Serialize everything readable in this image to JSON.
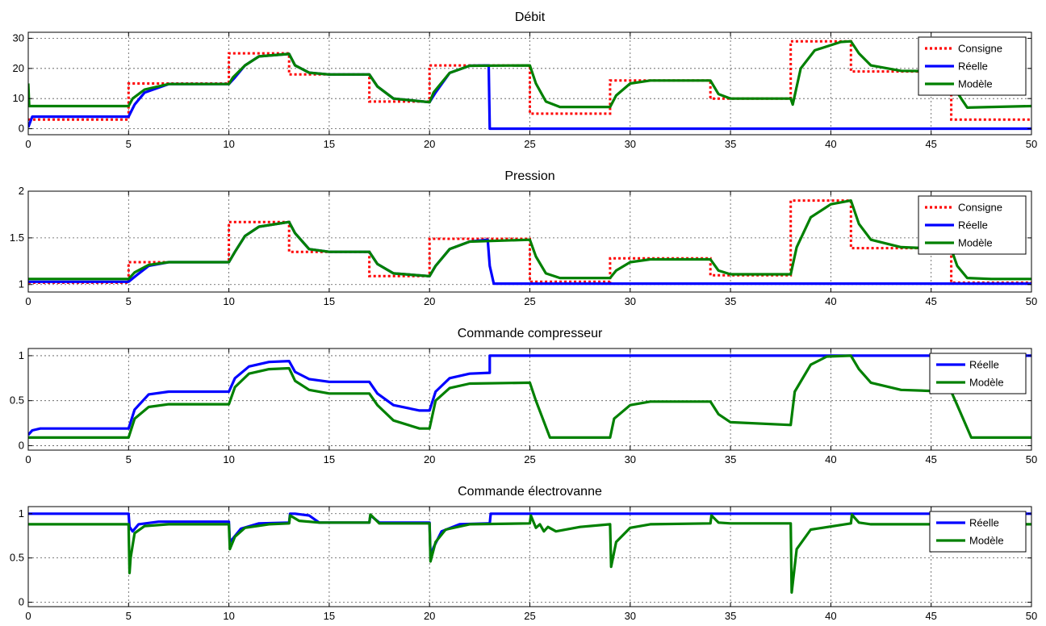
{
  "chart_data": [
    {
      "type": "line",
      "title": "Débit",
      "xlim": [
        0,
        50
      ],
      "ylim": [
        -2,
        32
      ],
      "xticks": [
        0,
        5,
        10,
        15,
        20,
        25,
        30,
        35,
        40,
        45,
        50
      ],
      "yticks": [
        0,
        10,
        20,
        30
      ],
      "grid": true,
      "legend_position": "top-right",
      "series": [
        {
          "name": "Consigne",
          "style": "dotted",
          "color": "#ff0000",
          "x": [
            0,
            5,
            5,
            10,
            10,
            13,
            13,
            17,
            17,
            20,
            20,
            23,
            23,
            25,
            25,
            29,
            29,
            34,
            34,
            38,
            38,
            41,
            41,
            46,
            46,
            50
          ],
          "y": [
            3,
            3,
            15,
            15,
            25,
            25,
            18,
            18,
            9,
            9,
            21,
            21,
            21,
            21,
            5,
            5,
            16,
            16,
            10,
            10,
            29,
            29,
            19,
            19,
            3,
            3
          ]
        },
        {
          "name": "Réelle",
          "style": "solid",
          "color": "#0000ff",
          "x": [
            0,
            0.2,
            5,
            5.3,
            5.8,
            7,
            10,
            10.3,
            10.8,
            11.5,
            13,
            13.3,
            14,
            15,
            17,
            17.4,
            18.2,
            20,
            20.3,
            21,
            22,
            22.95,
            23,
            50
          ],
          "y": [
            0.5,
            4,
            4,
            8,
            12,
            14.8,
            14.8,
            17,
            21,
            24,
            24.8,
            21,
            18.6,
            18,
            18,
            14,
            10,
            8.8,
            12,
            18.5,
            20.9,
            21,
            0,
            0
          ]
        },
        {
          "name": "Modèle",
          "style": "solid",
          "color": "#008000",
          "x": [
            0,
            0.05,
            5,
            5.2,
            5.8,
            7,
            10,
            10.2,
            10.8,
            11.5,
            13,
            13.3,
            14,
            15,
            17,
            17.4,
            18.2,
            20,
            20.2,
            21,
            22,
            25,
            25.3,
            25.8,
            26.5,
            29,
            29.3,
            30,
            31,
            34,
            34.4,
            35,
            38,
            38.1,
            38.5,
            39.2,
            40.5,
            41,
            41.4,
            42,
            43.5,
            46,
            46.3,
            46.8,
            48,
            50
          ],
          "y": [
            15,
            7.5,
            7.5,
            10,
            13,
            14.8,
            14.8,
            17,
            21,
            24,
            24.8,
            21,
            18.6,
            18,
            18,
            14,
            10,
            8.8,
            12,
            18.5,
            20.9,
            21,
            15,
            9,
            7.2,
            7.2,
            11,
            15,
            16,
            16,
            11.5,
            10,
            10,
            8,
            20,
            26,
            28.8,
            29,
            25,
            21,
            19.2,
            19,
            12,
            7,
            7.2,
            7.5
          ]
        }
      ]
    },
    {
      "type": "line",
      "title": "Pression",
      "xlim": [
        0,
        50
      ],
      "ylim": [
        0.92,
        2
      ],
      "xticks": [
        0,
        5,
        10,
        15,
        20,
        25,
        30,
        35,
        40,
        45,
        50
      ],
      "yticks": [
        1,
        1.5,
        2
      ],
      "grid": true,
      "legend_position": "top-right",
      "series": [
        {
          "name": "Consigne",
          "style": "dotted",
          "color": "#ff0000",
          "x": [
            0,
            5,
            5,
            10,
            10,
            13,
            13,
            17,
            17,
            20,
            20,
            25,
            25,
            29,
            29,
            34,
            34,
            38,
            38,
            41,
            41,
            46,
            46,
            50
          ],
          "y": [
            1.02,
            1.02,
            1.24,
            1.24,
            1.67,
            1.67,
            1.35,
            1.35,
            1.09,
            1.09,
            1.49,
            1.49,
            1.03,
            1.03,
            1.28,
            1.28,
            1.1,
            1.1,
            1.9,
            1.9,
            1.39,
            1.39,
            1.02,
            1.02
          ]
        },
        {
          "name": "Réelle",
          "style": "solid",
          "color": "#0000ff",
          "x": [
            0,
            5,
            5.4,
            6,
            7,
            10,
            10.3,
            10.8,
            11.5,
            13,
            13.3,
            14,
            15,
            17,
            17.4,
            18.2,
            20,
            20.3,
            21,
            22,
            22.9,
            23,
            23.2,
            50
          ],
          "y": [
            1.03,
            1.03,
            1.1,
            1.2,
            1.24,
            1.24,
            1.35,
            1.52,
            1.62,
            1.67,
            1.55,
            1.38,
            1.35,
            1.35,
            1.22,
            1.12,
            1.09,
            1.2,
            1.38,
            1.46,
            1.48,
            1.2,
            1.01,
            1.01
          ]
        },
        {
          "name": "Modèle",
          "style": "solid",
          "color": "#008000",
          "x": [
            0,
            5,
            5.3,
            6,
            7,
            10,
            10.3,
            10.8,
            11.5,
            13,
            13.3,
            14,
            15,
            17,
            17.4,
            18.2,
            20,
            20.3,
            21,
            22,
            25,
            25.3,
            25.8,
            26.5,
            29,
            29.3,
            30,
            31,
            34,
            34.4,
            35,
            38,
            38.3,
            39,
            40,
            41,
            41.4,
            42,
            43.5,
            46,
            46.3,
            46.8,
            48,
            50
          ],
          "y": [
            1.06,
            1.06,
            1.13,
            1.21,
            1.24,
            1.24,
            1.35,
            1.52,
            1.62,
            1.67,
            1.55,
            1.38,
            1.35,
            1.35,
            1.22,
            1.12,
            1.09,
            1.2,
            1.38,
            1.46,
            1.48,
            1.3,
            1.12,
            1.07,
            1.07,
            1.15,
            1.24,
            1.27,
            1.27,
            1.15,
            1.11,
            1.11,
            1.4,
            1.72,
            1.86,
            1.9,
            1.65,
            1.48,
            1.4,
            1.38,
            1.2,
            1.07,
            1.06,
            1.06
          ]
        }
      ]
    },
    {
      "type": "line",
      "title": "Commande compresseur",
      "xlim": [
        0,
        50
      ],
      "ylim": [
        -0.05,
        1.08
      ],
      "xticks": [
        0,
        5,
        10,
        15,
        20,
        25,
        30,
        35,
        40,
        45,
        50
      ],
      "yticks": [
        0,
        0.5,
        1
      ],
      "grid": true,
      "legend_position": "top-right",
      "series": [
        {
          "name": "Réelle",
          "style": "solid",
          "color": "#0000ff",
          "x": [
            0,
            0.2,
            0.6,
            5,
            5.3,
            6,
            7,
            10,
            10.3,
            11,
            12,
            13,
            13.3,
            14,
            15,
            17,
            17.4,
            18.2,
            19.5,
            20,
            20.3,
            21,
            22,
            23,
            23,
            50
          ],
          "y": [
            0.12,
            0.17,
            0.19,
            0.19,
            0.4,
            0.57,
            0.6,
            0.6,
            0.75,
            0.88,
            0.93,
            0.94,
            0.82,
            0.74,
            0.71,
            0.71,
            0.58,
            0.45,
            0.39,
            0.39,
            0.6,
            0.75,
            0.8,
            0.81,
            1,
            1
          ]
        },
        {
          "name": "Modèle",
          "style": "solid",
          "color": "#008000",
          "x": [
            0,
            5,
            5.3,
            6,
            7,
            10,
            10.3,
            11,
            12,
            13,
            13.3,
            14,
            15,
            17,
            17.4,
            18.2,
            19.5,
            20,
            20.3,
            21,
            22,
            25,
            25.3,
            26,
            29,
            29.2,
            30,
            31,
            34,
            34.4,
            35,
            38,
            38.2,
            39,
            39.8,
            41,
            41.4,
            42,
            43.5,
            46,
            46.3,
            47,
            50
          ],
          "y": [
            0.09,
            0.09,
            0.3,
            0.43,
            0.46,
            0.46,
            0.65,
            0.8,
            0.85,
            0.86,
            0.72,
            0.62,
            0.58,
            0.58,
            0.45,
            0.28,
            0.19,
            0.19,
            0.5,
            0.64,
            0.69,
            0.7,
            0.5,
            0.09,
            0.09,
            0.3,
            0.45,
            0.49,
            0.49,
            0.35,
            0.26,
            0.23,
            0.6,
            0.9,
            0.99,
            1,
            0.85,
            0.7,
            0.62,
            0.6,
            0.45,
            0.09,
            0.09
          ]
        }
      ]
    },
    {
      "type": "line",
      "title": "Commande électrovanne",
      "xlim": [
        0,
        50
      ],
      "ylim": [
        -0.05,
        1.08
      ],
      "xticks": [
        0,
        5,
        10,
        15,
        20,
        25,
        30,
        35,
        40,
        45,
        50
      ],
      "yticks": [
        0,
        0.5,
        1
      ],
      "grid": true,
      "legend_position": "top-right",
      "series": [
        {
          "name": "Réelle",
          "style": "solid",
          "color": "#0000ff",
          "x": [
            0,
            5,
            5.05,
            5.2,
            5.5,
            6.5,
            10,
            10.05,
            10.2,
            10.6,
            11.5,
            13,
            13.05,
            13.3,
            14,
            14.5,
            15,
            17,
            17.05,
            17.5,
            20,
            20.05,
            20.2,
            20.6,
            21.5,
            22.9,
            23,
            23.05,
            50
          ],
          "y": [
            1,
            1,
            0.85,
            0.8,
            0.88,
            0.91,
            0.91,
            0.68,
            0.72,
            0.83,
            0.89,
            0.9,
            1,
            1,
            0.98,
            0.9,
            0.9,
            0.9,
            0.98,
            0.9,
            0.9,
            0.52,
            0.62,
            0.8,
            0.88,
            0.89,
            0.89,
            1,
            1
          ]
        },
        {
          "name": "Modèle",
          "style": "solid",
          "color": "#008000",
          "x": [
            0,
            5,
            5.05,
            5.1,
            5.3,
            5.8,
            7,
            10,
            10.05,
            10.3,
            10.8,
            12,
            13,
            13.05,
            13.5,
            14.5,
            17,
            17.05,
            17.5,
            20,
            20.05,
            20.3,
            20.8,
            22,
            25,
            25.05,
            25.3,
            25.5,
            25.7,
            25.9,
            26.3,
            27.5,
            29,
            29.05,
            29.3,
            30,
            31,
            34,
            34.05,
            34.4,
            35,
            38,
            38.05,
            38.3,
            39,
            41,
            41.05,
            41.4,
            42,
            50
          ],
          "y": [
            0.88,
            0.88,
            0.33,
            0.5,
            0.78,
            0.86,
            0.88,
            0.88,
            0.6,
            0.74,
            0.84,
            0.88,
            0.89,
            0.98,
            0.92,
            0.9,
            0.9,
            0.99,
            0.89,
            0.89,
            0.46,
            0.68,
            0.82,
            0.88,
            0.89,
            0.98,
            0.84,
            0.88,
            0.8,
            0.85,
            0.8,
            0.85,
            0.88,
            0.4,
            0.68,
            0.84,
            0.88,
            0.89,
            0.98,
            0.9,
            0.89,
            0.89,
            0.11,
            0.6,
            0.82,
            0.89,
            0.99,
            0.9,
            0.88,
            0.88
          ]
        }
      ]
    }
  ]
}
